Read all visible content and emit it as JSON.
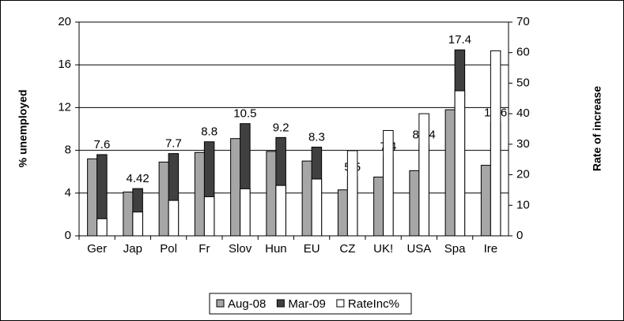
{
  "chart_data": {
    "type": "bar",
    "categories": [
      "Ger",
      "Jap",
      "Pol",
      "Fr",
      "Slov",
      "Hun",
      "EU",
      "CZ",
      "UK!",
      "USA",
      "Spa",
      "Ire"
    ],
    "series": [
      {
        "name": "Aug-08",
        "color": "#a6a6a6",
        "values": [
          7.2,
          4.1,
          6.9,
          7.8,
          9.1,
          7.9,
          7.0,
          4.3,
          5.5,
          6.1,
          11.8,
          6.6
        ]
      },
      {
        "name": "Mar-09",
        "color": "#404040",
        "values": [
          7.6,
          4.42,
          7.7,
          8.8,
          10.5,
          9.2,
          8.3,
          5.5,
          7.4,
          8.54,
          17.4,
          10.6
        ],
        "show_labels": true
      },
      {
        "name": "RateInc%",
        "color": "#ffffff",
        "axis": "y2",
        "values": [
          5.6,
          7.8,
          11.6,
          12.8,
          15.4,
          16.5,
          18.6,
          27.9,
          34.5,
          40,
          47.5,
          60.6
        ]
      }
    ],
    "y_label": "% unemployed",
    "y2_label": "Rate of increase",
    "ylim": [
      0,
      20
    ],
    "yticks": [
      0,
      4,
      8,
      12,
      16,
      20
    ],
    "y2lim": [
      0,
      70
    ],
    "y2ticks": [
      0,
      10,
      20,
      30,
      40,
      50,
      60,
      70
    ],
    "grid": true,
    "legend": "bottom"
  }
}
